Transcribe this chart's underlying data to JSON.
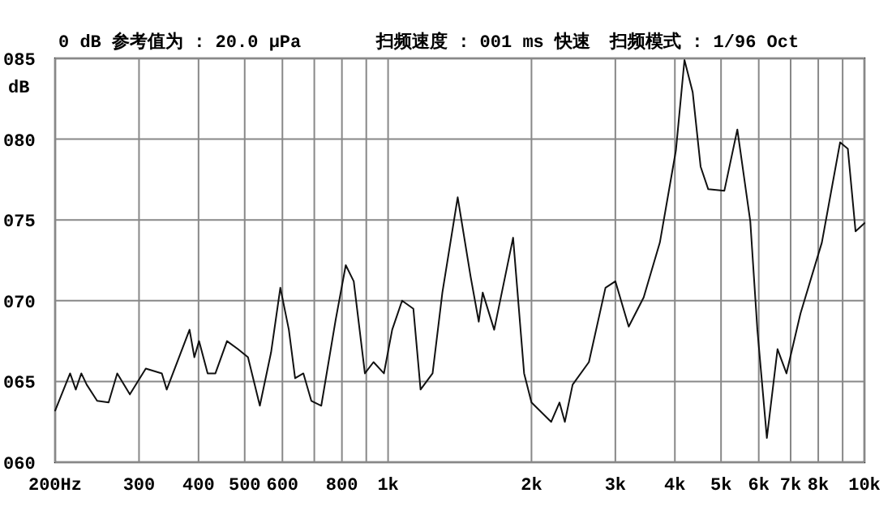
{
  "chart_data": {
    "type": "line",
    "title": "0 dB 参考值为 : 20.0 μPa",
    "ylabel": "dB",
    "annotations": [
      "扫频速度 : 001 ms 快速",
      "扫频模式 : 1/96 Oct"
    ],
    "log": "x",
    "grid": true,
    "marker": "none",
    "line_style": "solid",
    "xlim": [
      200,
      10000
    ],
    "xticks": [
      {
        "value": 200,
        "label": "200Hz"
      },
      300,
      400,
      500,
      600,
      {
        "value": 700,
        "label": null
      },
      800,
      {
        "value": 900,
        "label": null
      },
      {
        "value": 1000,
        "label": "1k"
      },
      {
        "value": 2000,
        "label": "2k"
      },
      {
        "value": 3000,
        "label": "3k"
      },
      {
        "value": 4000,
        "label": "4k"
      },
      {
        "value": 5000,
        "label": "5k"
      },
      {
        "value": 6000,
        "label": "6k"
      },
      {
        "value": 7000,
        "label": "7k"
      },
      {
        "value": 8000,
        "label": "8k"
      },
      {
        "value": 9000,
        "label": null
      },
      {
        "value": 10000,
        "label": "10k"
      }
    ],
    "ylim": [
      60,
      85
    ],
    "yticks": [
      {
        "value": 60,
        "label": "060"
      },
      {
        "value": 65,
        "label": "065"
      },
      {
        "value": 70,
        "label": "070"
      },
      {
        "value": 75,
        "label": "075"
      },
      {
        "value": 80,
        "label": "080"
      },
      {
        "value": 85,
        "label": "085"
      }
    ],
    "series": [
      {
        "color": "#111111",
        "x": [
          200,
          215,
          221,
          227,
          233,
          245,
          259,
          270,
          287,
          310,
          335,
          343,
          383,
          392,
          401,
          418,
          434,
          459,
          484,
          508,
          538,
          568,
          594,
          619,
          638,
          664,
          690,
          724,
          776,
          815,
          847,
          894,
          932,
          980,
          1020,
          1070,
          1130,
          1170,
          1240,
          1300,
          1400,
          1490,
          1550,
          1580,
          1670,
          1830,
          1930,
          2000,
          2200,
          2290,
          2350,
          2440,
          2640,
          2860,
          3000,
          3200,
          3440,
          3720,
          4020,
          4190,
          4360,
          4530,
          4700,
          5080,
          5410,
          5760,
          5960,
          6240,
          6570,
          6860,
          7340,
          8140,
          8890,
          9230,
          9580,
          10000
        ],
        "values": [
          63.2,
          65.5,
          64.5,
          65.5,
          64.8,
          63.8,
          63.7,
          65.5,
          64.2,
          65.8,
          65.5,
          64.5,
          68.2,
          66.5,
          67.5,
          65.5,
          65.5,
          67.5,
          67.0,
          66.5,
          63.5,
          66.8,
          70.8,
          68.2,
          65.2,
          65.5,
          63.8,
          63.5,
          68.8,
          72.2,
          71.2,
          65.5,
          66.2,
          65.5,
          68.2,
          70.0,
          69.5,
          64.5,
          65.5,
          70.5,
          76.4,
          71.5,
          68.7,
          70.5,
          68.2,
          73.9,
          65.5,
          63.7,
          62.5,
          63.7,
          62.5,
          64.8,
          66.2,
          70.8,
          71.2,
          68.4,
          70.2,
          73.6,
          79.3,
          84.9,
          82.9,
          78.3,
          76.9,
          76.8,
          80.6,
          74.9,
          68.2,
          61.5,
          67.0,
          65.5,
          69.2,
          73.6,
          79.8,
          79.4,
          74.3,
          74.8
        ]
      }
    ]
  }
}
